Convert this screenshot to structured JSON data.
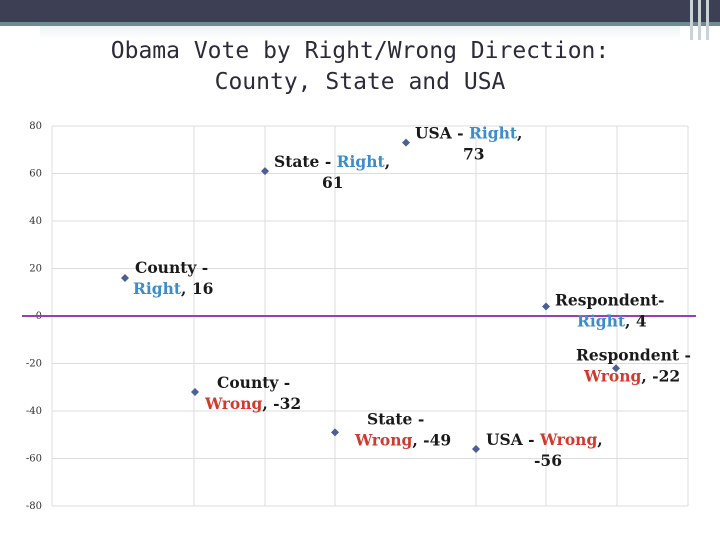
{
  "slide": {
    "title": "Obama Vote by Right/Wrong Direction:\nCounty, State and USA"
  },
  "colors": {
    "marker": "#4a5f95",
    "right": "#3d8ccb",
    "wrong": "#d13a2e",
    "black": "#1a1a1a",
    "zero_line": "#9a3fb0",
    "grid": "#dddddd"
  },
  "chart_data": {
    "type": "scatter",
    "title": "",
    "xlabel": "",
    "ylabel": "",
    "ylim": [
      -80,
      80
    ],
    "y_ticks": [
      80,
      60,
      40,
      20,
      0,
      -20,
      -40,
      -60,
      -80
    ],
    "grid": true,
    "x_axis_tick_labels": false,
    "points": [
      {
        "name": "County - Right",
        "label_head": "County -",
        "label_tail": "Right",
        "y": 16,
        "value_text": "16"
      },
      {
        "name": "State - Right",
        "label_head": "State - ",
        "label_tail": "Right",
        "y": 61,
        "value_text": "61"
      },
      {
        "name": "USA - Right",
        "label_head": "USA - ",
        "label_tail": "Right",
        "y": 73,
        "value_text": "73"
      },
      {
        "name": "Respondent- Right",
        "label_head": "Respondent-",
        "label_tail": "Right",
        "y": 4,
        "value_text": "4"
      },
      {
        "name": "County - Wrong",
        "label_head": "County -",
        "label_tail": "Wrong",
        "y": -32,
        "value_text": "-32"
      },
      {
        "name": "State - Wrong",
        "label_head": "State -",
        "label_tail": "Wrong",
        "y": -49,
        "value_text": "-49"
      },
      {
        "name": "USA - Wrong",
        "label_head": "USA - ",
        "label_tail": "Wrong",
        "y": -56,
        "value_text": "-56"
      },
      {
        "name": "Respondent - Wrong",
        "label_head": "Respondent -",
        "label_tail": "Wrong",
        "y": -22,
        "value_text": "-22"
      }
    ]
  }
}
